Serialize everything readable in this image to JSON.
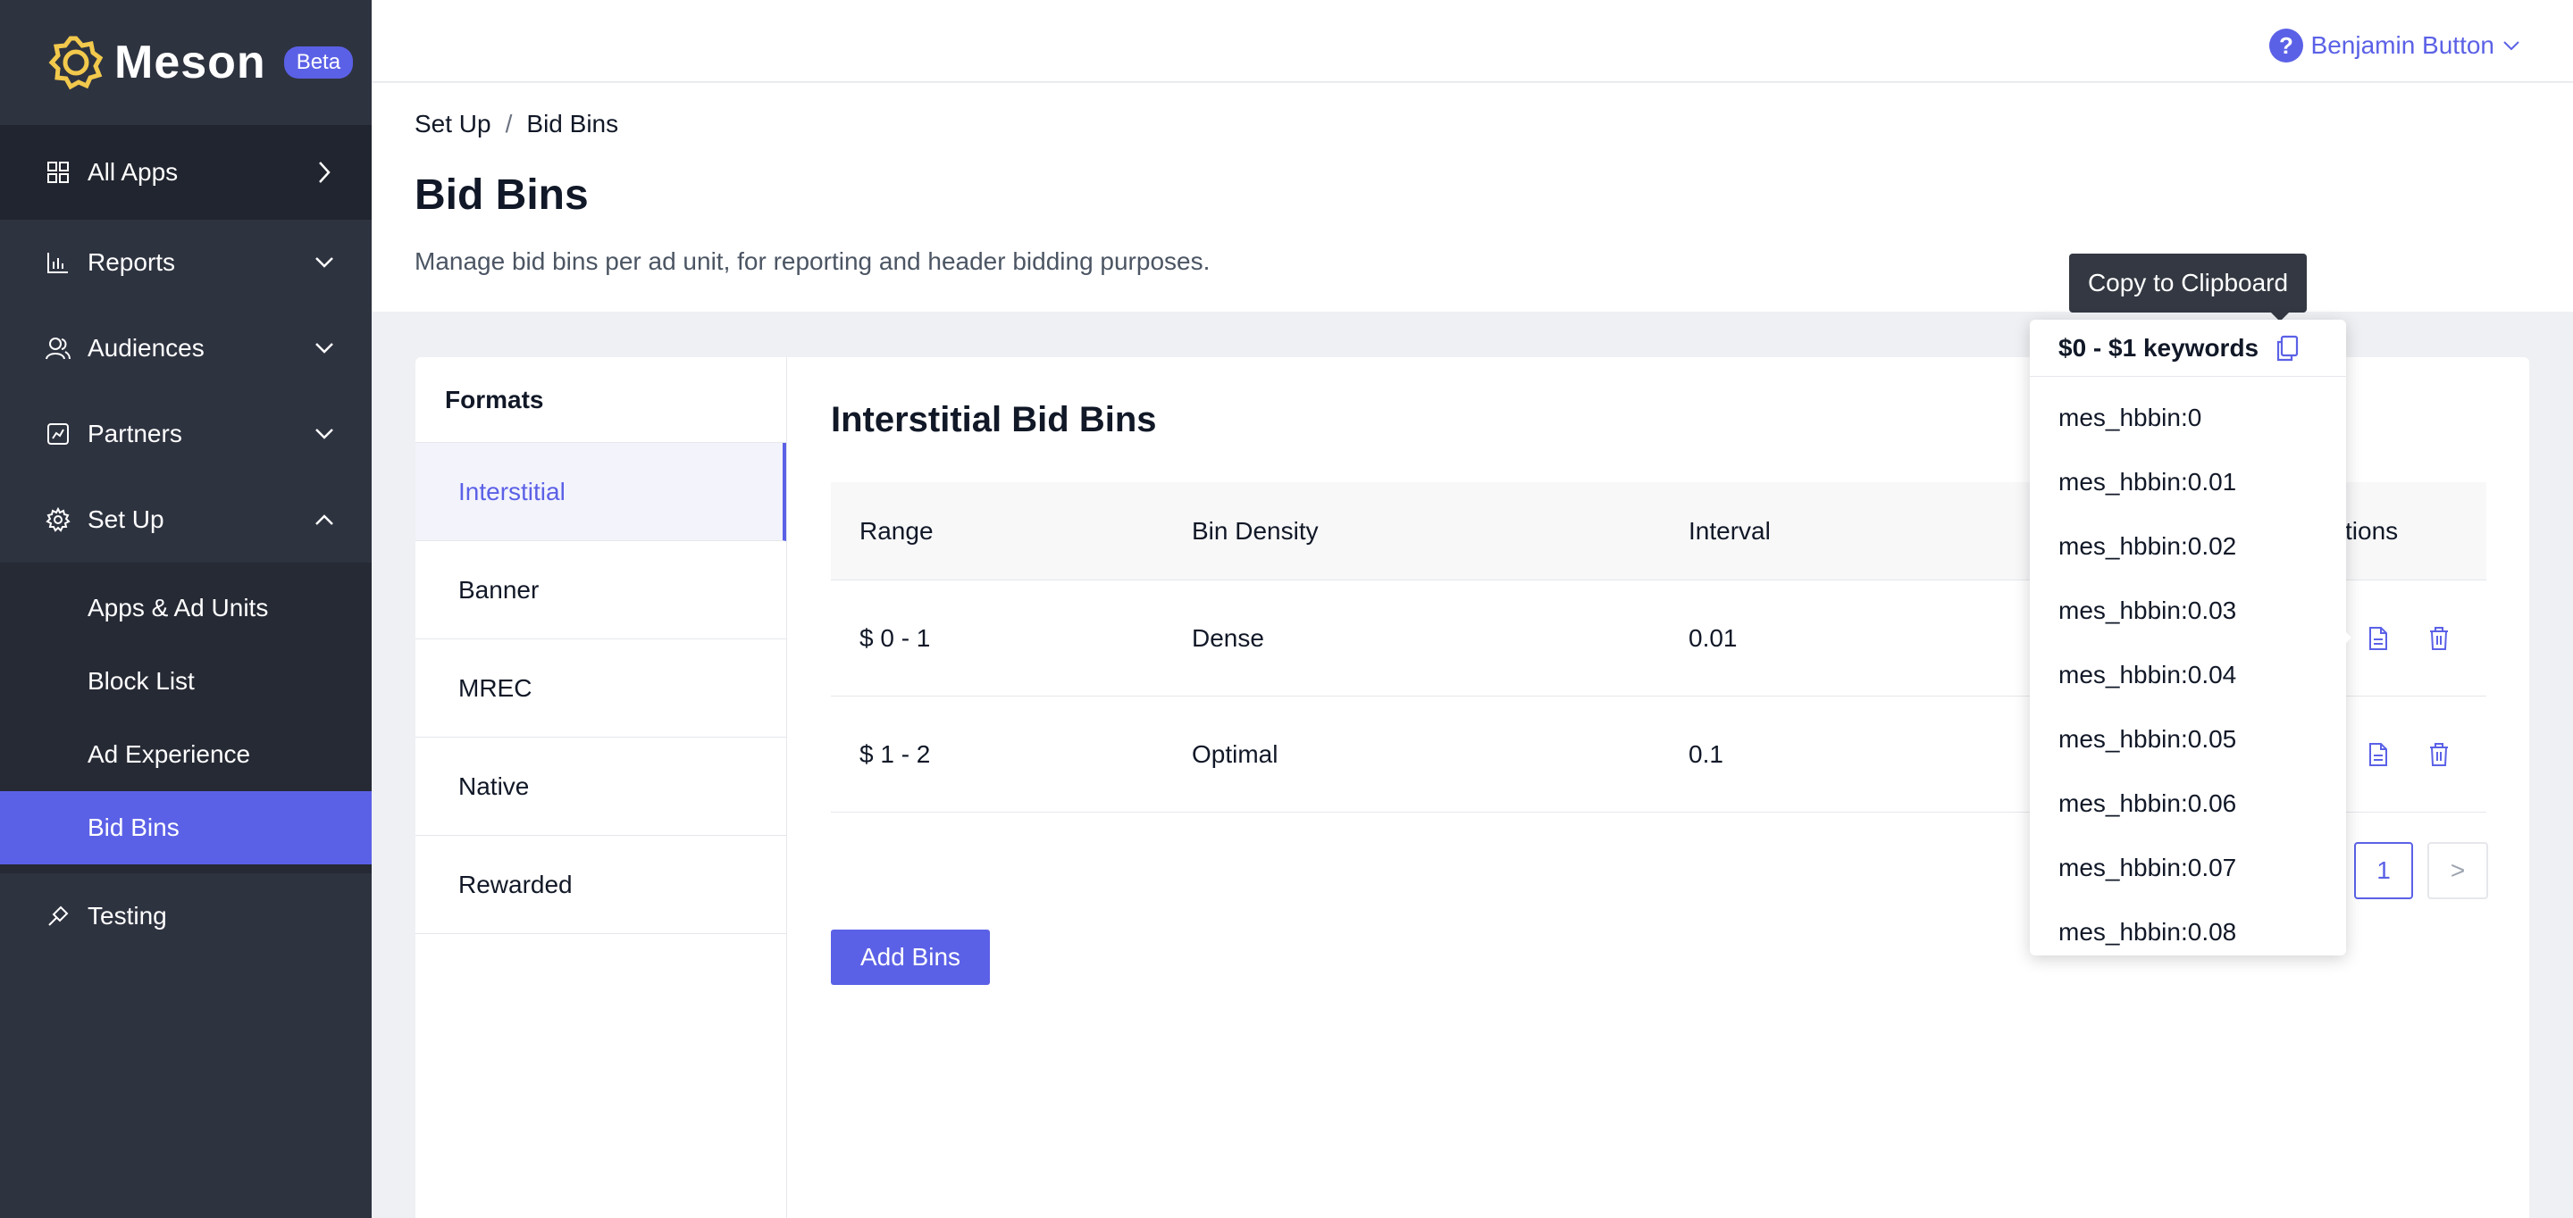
{
  "app": {
    "name": "Meson",
    "badge": "Beta"
  },
  "sidebar": {
    "top": {
      "label": "All Apps",
      "icon": "grid-icon"
    },
    "items": [
      {
        "label": "Reports",
        "icon": "bar-chart-icon"
      },
      {
        "label": "Audiences",
        "icon": "users-icon"
      },
      {
        "label": "Partners",
        "icon": "partners-icon"
      },
      {
        "label": "Set Up",
        "icon": "gear-icon"
      }
    ],
    "sub_items": [
      "Apps & Ad Units",
      "Block List",
      "Ad Experience",
      "Bid Bins"
    ],
    "active_sub": "Bid Bins",
    "testing": {
      "label": "Testing",
      "icon": "pin-icon"
    }
  },
  "header": {
    "help": "?",
    "user_name": "Benjamin Button"
  },
  "breadcrumb": {
    "first": "Set Up",
    "separator": "/",
    "second": "Bid Bins"
  },
  "page": {
    "title": "Bid Bins",
    "description": "Manage bid bins per ad unit, for reporting and header bidding purposes."
  },
  "formats": {
    "heading": "Formats",
    "items": [
      "Interstitial",
      "Banner",
      "MREC",
      "Native",
      "Rewarded"
    ],
    "active": "Interstitial"
  },
  "bins": {
    "title": "Interstitial Bid Bins",
    "columns": [
      "Range",
      "Bin Density",
      "Interval",
      "tions"
    ],
    "rows": [
      {
        "range": "$ 0 - 1",
        "density": "Dense",
        "interval": "0.01"
      },
      {
        "range": "$ 1 - 2",
        "density": "Optimal",
        "interval": "0.1"
      }
    ],
    "page": "1",
    "next": ">",
    "add_label": "Add Bins"
  },
  "popover": {
    "tooltip": "Copy to Clipboard",
    "title": "$0 - $1 keywords",
    "keywords": [
      "mes_hbbin:0",
      "mes_hbbin:0.01",
      "mes_hbbin:0.02",
      "mes_hbbin:0.03",
      "mes_hbbin:0.04",
      "mes_hbbin:0.05",
      "mes_hbbin:0.06",
      "mes_hbbin:0.07",
      "mes_hbbin:0.08"
    ]
  },
  "colors": {
    "accent": "#5b61e6",
    "sidebar": "#2e3340",
    "sidebar_dark": "#21252f",
    "logo": "#f2c94c"
  }
}
